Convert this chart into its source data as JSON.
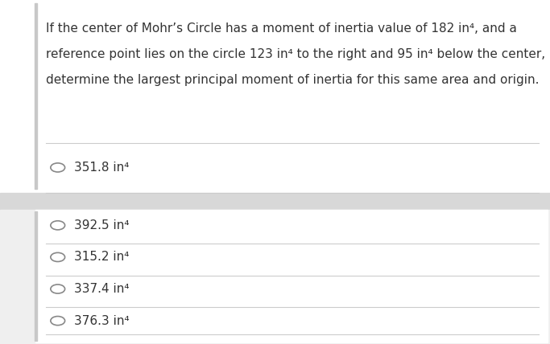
{
  "question_text_lines": [
    "If the center of Mohr’s Circle has a moment of inertia value of 182 in⁴, and a",
    "reference point lies on the circle 123 in⁴ to the right and 95 in⁴ below the center,",
    "determine the largest principal moment of inertia for this same area and origin."
  ],
  "answer_top": {
    "label": "351.8 in⁴"
  },
  "answer_bottom": [
    {
      "label": "392.5 in⁴"
    },
    {
      "label": "315.2 in⁴"
    },
    {
      "label": "337.4 in⁴"
    },
    {
      "label": "376.3 in⁴"
    }
  ],
  "bg_top": "#ffffff",
  "bg_divider": "#d8d8d8",
  "bg_bottom": "#efefef",
  "bg_bottom_panel": "#ffffff",
  "left_bar_color": "#c8c8c8",
  "text_color": "#333333",
  "line_color": "#cccccc",
  "question_fontsize": 11.0,
  "answer_fontsize": 11.0,
  "circle_color": "#888888"
}
